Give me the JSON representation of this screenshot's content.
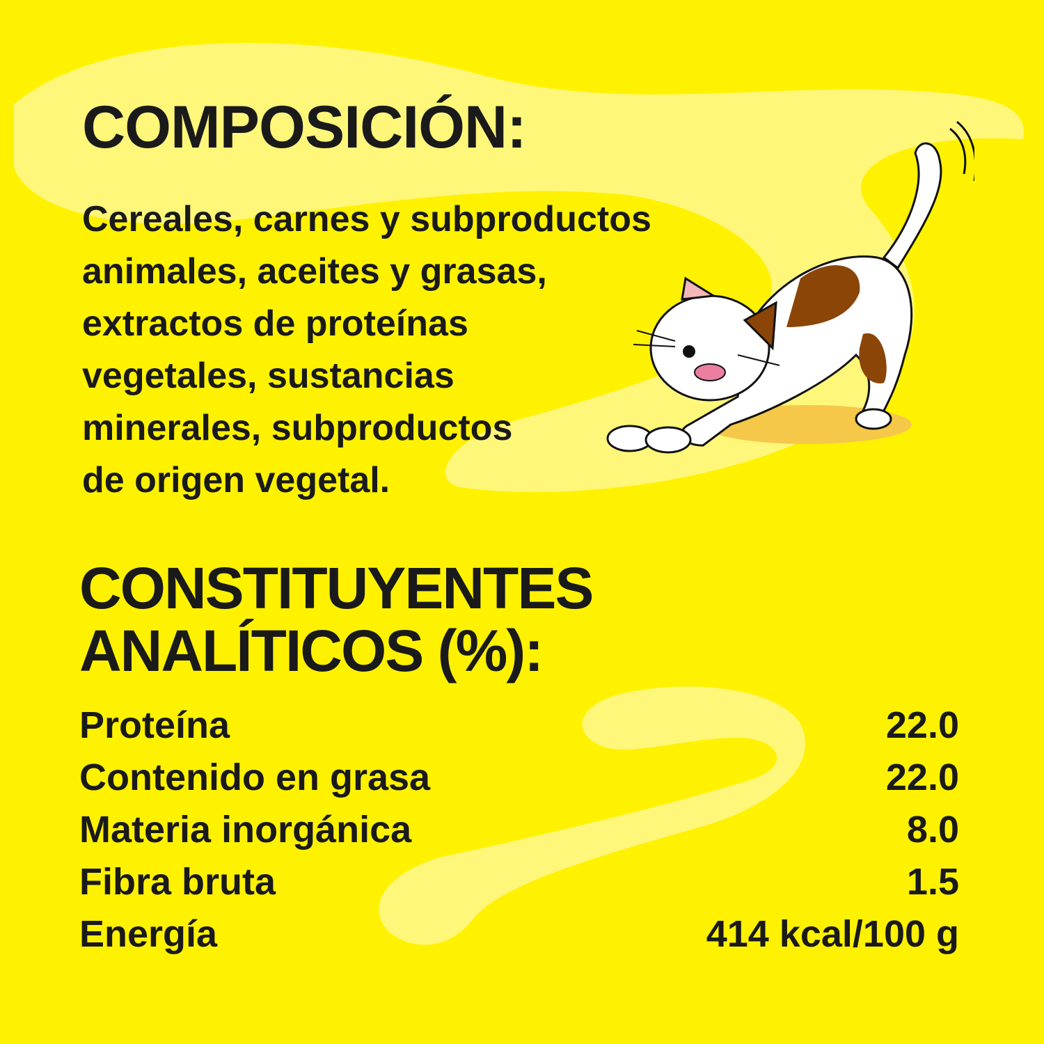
{
  "composition": {
    "title": "COMPOSICIÓN:",
    "lines": [
      "Cereales, carnes y subproductos",
      "animales, aceites y grasas,",
      "extractos de proteínas",
      "vegetales, sustancias",
      "minerales, subproductos",
      "de origen vegetal."
    ]
  },
  "analytical": {
    "title_line1": "CONSTITUYENTES",
    "title_line2": "ANALÍTICOS (%):",
    "rows": [
      {
        "label": "Proteína",
        "value": "22.0"
      },
      {
        "label": "Contenido en grasa",
        "value": "22.0"
      },
      {
        "label": "Materia inorgánica",
        "value": "8.0"
      },
      {
        "label": "Fibra bruta",
        "value": "1.5"
      },
      {
        "label": "Energía",
        "value": "414 kcal/100 g"
      }
    ]
  },
  "colors": {
    "background": "#fff200",
    "swoosh": "#fff77a",
    "text": "#1a1a1a",
    "cat_patch": "#8b4506"
  },
  "illustration": "cartoon-cat-stretching"
}
